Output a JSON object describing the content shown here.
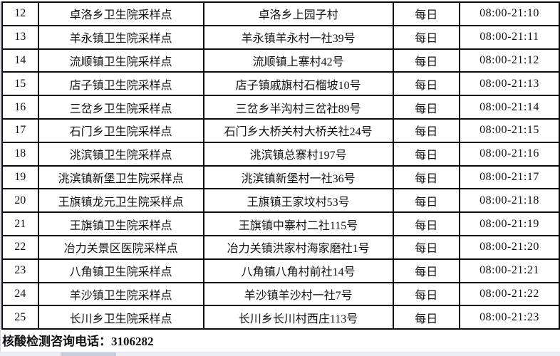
{
  "colors": {
    "table_border": "#0a0a0a",
    "text": "#111111",
    "scrollbar_track": "#eceef3",
    "scrollbar_thumb": "#c7cdda",
    "window_edge": "#d3d6e0"
  },
  "table": {
    "rows": [
      {
        "no": "12",
        "site": "卓洛乡卫生院采样点",
        "address": "卓洛乡上园子村",
        "frequency": "每日",
        "time": "08:00-21:10"
      },
      {
        "no": "13",
        "site": "羊永镇卫生院采样点",
        "address": "羊永镇羊永村一社39号",
        "frequency": "每日",
        "time": "08:00-21:11"
      },
      {
        "no": "14",
        "site": "流顺镇卫生院采样点",
        "address": "流顺镇上寨村42号",
        "frequency": "每日",
        "time": "08:00-21:12"
      },
      {
        "no": "15",
        "site": "店子镇卫生院采样点",
        "address": "店子镇戚旗村石榴坡10号",
        "frequency": "每日",
        "time": "08:00-21:13"
      },
      {
        "no": "16",
        "site": "三岔乡卫生院采样点",
        "address": "三岔乡半沟村三岔社89号",
        "frequency": "每日",
        "time": "08:00-21:14"
      },
      {
        "no": "17",
        "site": "石门乡卫生院采样点",
        "address": "石门乡大桥关村大桥关社24号",
        "frequency": "每日",
        "time": "08:00-21:15"
      },
      {
        "no": "18",
        "site": "洮滨镇卫生院采样点",
        "address": "洮滨镇总寨村197号",
        "frequency": "每日",
        "time": "08:00-21:16"
      },
      {
        "no": "19",
        "site": "洮滨镇新堡卫生院采样点",
        "address": "洮滨镇新堡村一社36号",
        "frequency": "每日",
        "time": "08:00-21:17"
      },
      {
        "no": "20",
        "site": "王旗镇龙元卫生院采样点",
        "address": "王旗镇王家坟村53号",
        "frequency": "每日",
        "time": "08:00-21:18"
      },
      {
        "no": "21",
        "site": "王旗镇卫生院采样点",
        "address": "王旗镇中寨村二社115号",
        "frequency": "每日",
        "time": "08:00-21:19"
      },
      {
        "no": "22",
        "site": "冶力关景区医院采样点",
        "address": "冶力关镇洪家村海家磨社1号",
        "frequency": "每日",
        "time": "08:00-21:20"
      },
      {
        "no": "23",
        "site": "八角镇卫生院采样点",
        "address": "八角镇八角村前社14号",
        "frequency": "每日",
        "time": "08:00-21:21"
      },
      {
        "no": "24",
        "site": "羊沙镇卫生院采样点",
        "address": "羊沙镇羊沙村一社7号",
        "frequency": "每日",
        "time": "08:00-21:22"
      },
      {
        "no": "25",
        "site": "长川乡卫生院采样点",
        "address": "长川乡长川村西庄113号",
        "frequency": "每日",
        "time": "08:00-21:23"
      }
    ]
  },
  "footer": {
    "label": "核酸检测咨询电话：",
    "number": "3106282"
  }
}
